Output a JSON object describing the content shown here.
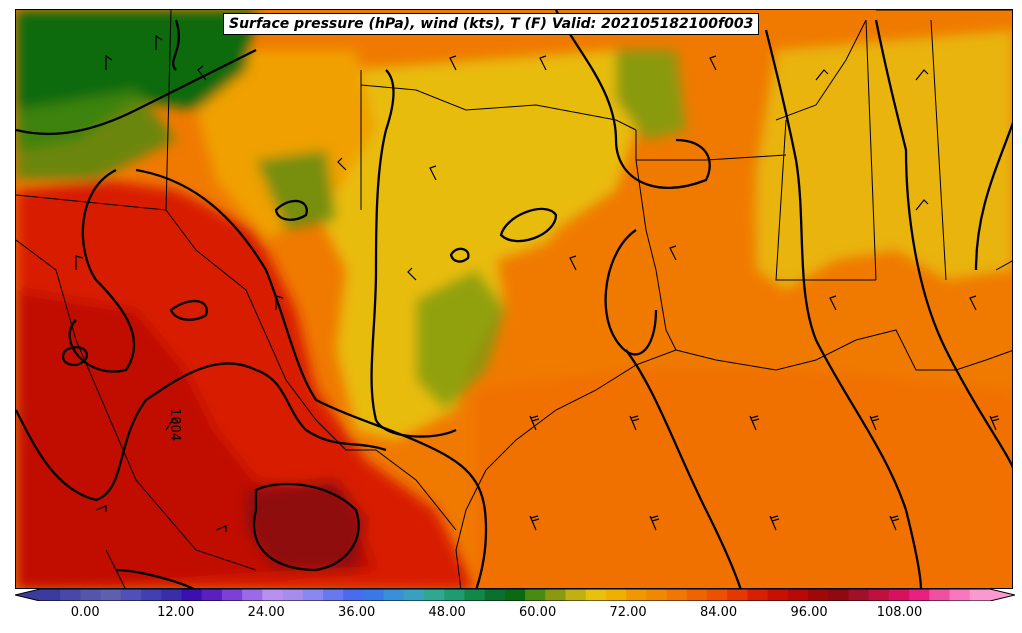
{
  "title": "Surface pressure (hPa), wind (kts), T (F) Valid: 202105182100f003",
  "contour_label": "1004",
  "colorbar": {
    "ticks": [
      "0.00",
      "12.00",
      "24.00",
      "36.00",
      "48.00",
      "60.00",
      "72.00",
      "84.00",
      "96.00",
      "108.00"
    ],
    "min": -6,
    "max": 120,
    "step": 3,
    "extend": "both",
    "colors": [
      "#3b3b9e",
      "#4848a8",
      "#5555ad",
      "#5f5fb0",
      "#5050b8",
      "#4040b0",
      "#3a2ea8",
      "#3b0fb0",
      "#5a1fc0",
      "#7a40d8",
      "#9a6ae8",
      "#b890f0",
      "#a78cf0",
      "#8a88f0",
      "#6a78f0",
      "#4a6af0",
      "#3a78e8",
      "#3a90d8",
      "#3aa0c0",
      "#30a890",
      "#209a70",
      "#108848",
      "#0a7030",
      "#0a6a10",
      "#4a8a10",
      "#8a9a10",
      "#c0b010",
      "#e8c010",
      "#f0b000",
      "#f09800",
      "#f08800",
      "#f07800",
      "#f06400",
      "#ec5000",
      "#e43800",
      "#d82000",
      "#c81000",
      "#b80808",
      "#a00808",
      "#900810",
      "#a01028",
      "#c01040",
      "#d81060",
      "#e82080",
      "#f050a0",
      "#f878c0",
      "#fc98d0"
    ]
  },
  "map": {
    "fill_base": "#f07a00",
    "regions": [
      {
        "name": "cold-north-west",
        "color": "#0a6a10"
      },
      {
        "name": "mild-plains",
        "color": "#e8bc10"
      },
      {
        "name": "hot-southwest",
        "color": "#c81000"
      },
      {
        "name": "very-hot-mexico",
        "color": "#900810"
      },
      {
        "name": "warm-gulf",
        "color": "#ec5800"
      }
    ]
  }
}
